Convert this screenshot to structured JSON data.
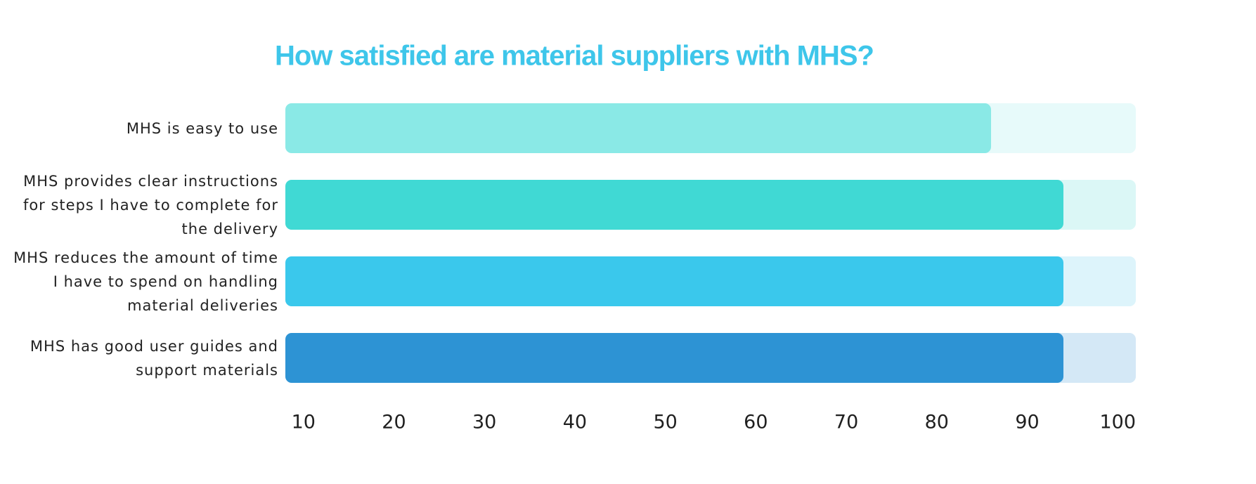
{
  "chart_data": {
    "type": "bar",
    "orientation": "horizontal",
    "title": "How satisfied are material suppliers with MHS?",
    "categories": [
      "MHS is easy to use",
      "MHS provides clear instructions for steps I have to complete for the delivery",
      "MHS reduces the amount of time I have to spend on handling material deliveries",
      "MHS has good user guides and support materials"
    ],
    "values": [
      86,
      94,
      94,
      94
    ],
    "colors": [
      "#8ae9e6",
      "#40d9d4",
      "#3ac8ec",
      "#2d93d4"
    ],
    "track_colors": [
      "#e7fafa",
      "#dbf7f6",
      "#ddf4fb",
      "#d4e8f6"
    ],
    "xlim": [
      8,
      102
    ],
    "xticks": [
      10,
      20,
      30,
      40,
      50,
      60,
      70,
      80,
      90,
      100
    ],
    "grid": false
  }
}
